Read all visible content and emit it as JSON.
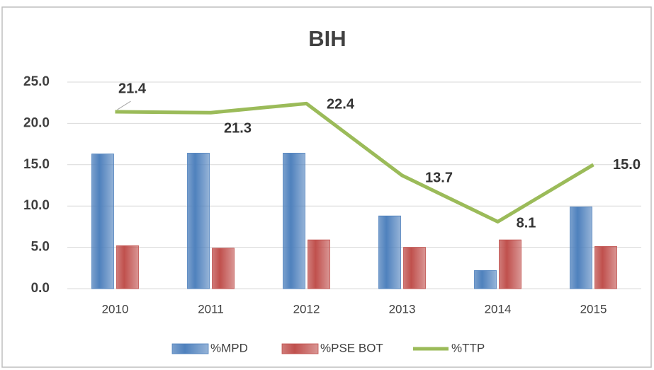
{
  "chart_data": {
    "type": "bar",
    "title": "BIH",
    "categories": [
      "2010",
      "2011",
      "2012",
      "2013",
      "2014",
      "2015"
    ],
    "series": [
      {
        "name": "%MPD",
        "color": "#4f81bd",
        "type": "bar",
        "values": [
          16.3,
          16.4,
          16.4,
          8.8,
          2.2,
          9.9
        ]
      },
      {
        "name": "%PSE BOT",
        "color": "#c0504d",
        "type": "bar",
        "values": [
          5.2,
          4.9,
          5.9,
          5.0,
          5.9,
          5.1
        ]
      },
      {
        "name": "%TTP",
        "color": "#9bbb59",
        "type": "line",
        "values": [
          21.4,
          21.3,
          22.4,
          13.7,
          8.1,
          15.0
        ],
        "value_labels": [
          "21.4",
          "21.3",
          "22.4",
          "13.7",
          "8.1",
          "15.0"
        ]
      }
    ],
    "ylim": [
      0,
      25
    ],
    "yticks": [
      {
        "value": 0,
        "label": "0.0"
      },
      {
        "value": 5,
        "label": "5.0"
      },
      {
        "value": 10,
        "label": "10.0"
      },
      {
        "value": 15,
        "label": "15.0"
      },
      {
        "value": 20,
        "label": "20.0"
      },
      {
        "value": 25,
        "label": "25.0"
      }
    ],
    "grid": true,
    "legend": "bottom"
  }
}
